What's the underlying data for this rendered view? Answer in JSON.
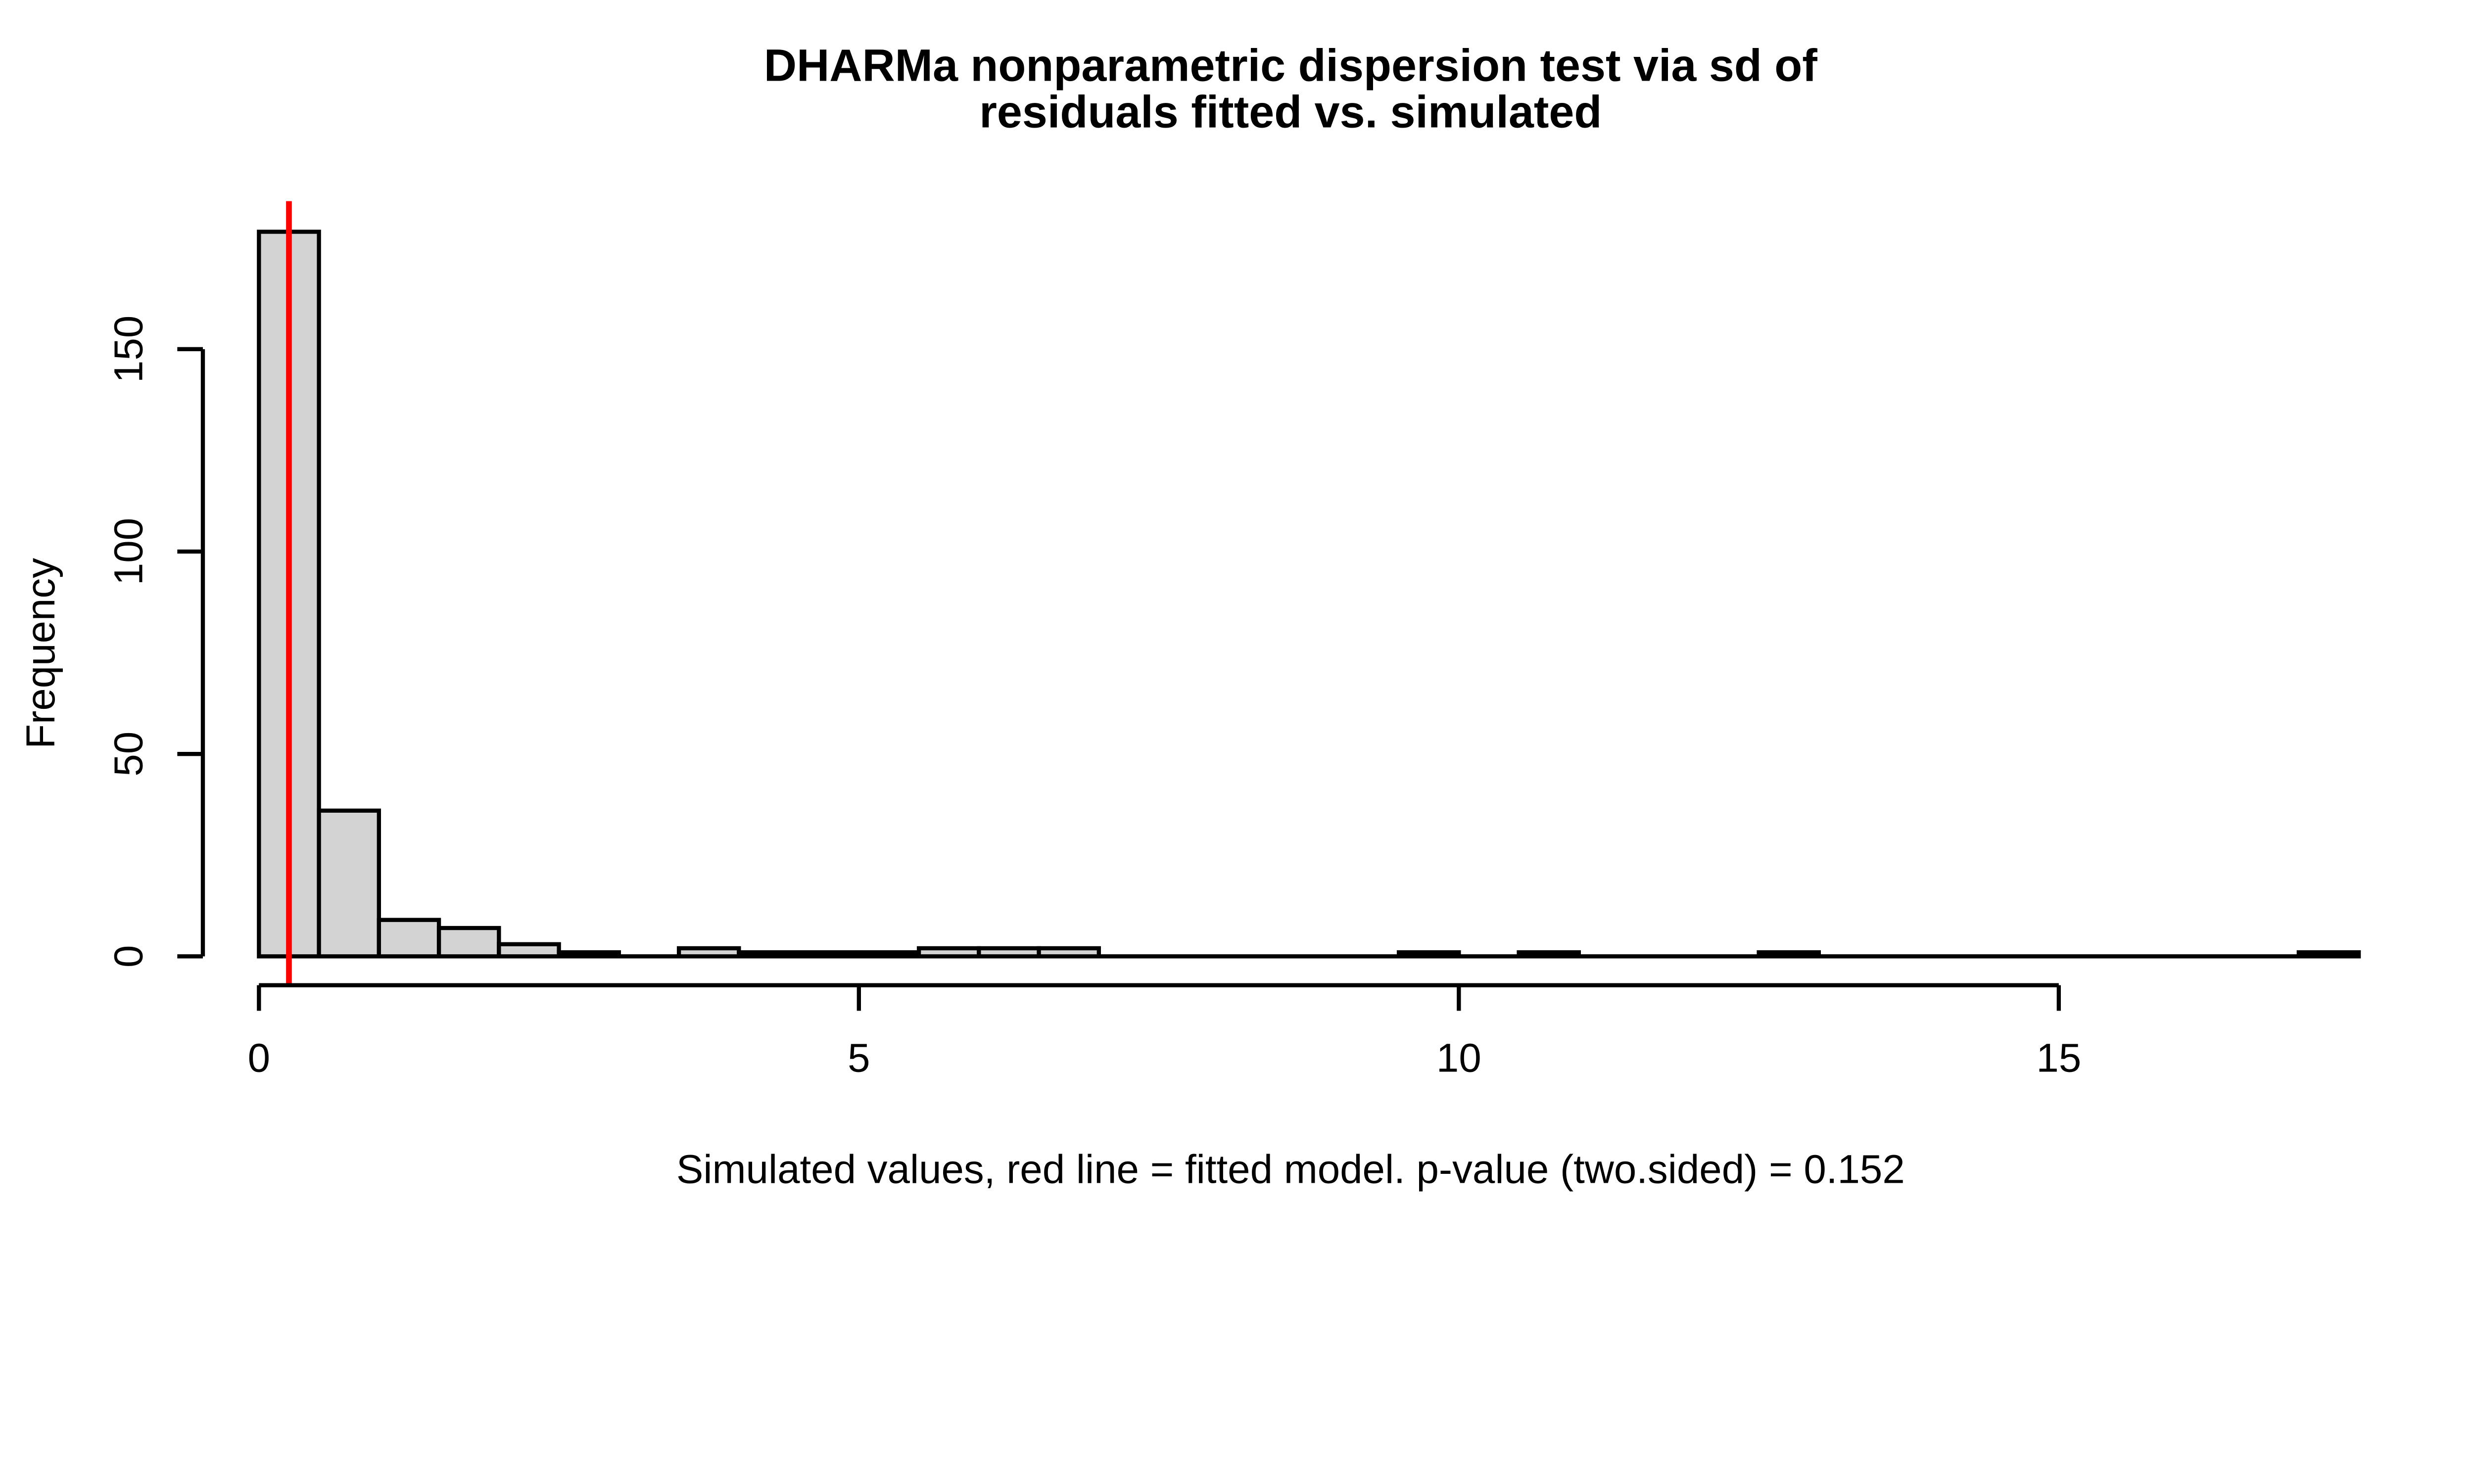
{
  "figure": {
    "background": "#FFFFFF"
  },
  "chart_data": {
    "type": "bar",
    "chart_kind": "histogram",
    "title": "DHARMa nonparametric dispersion test via sd of residuals fitted vs. simulated",
    "title_lines": [
      "DHARMa nonparametric dispersion test via sd of",
      "residuals fitted vs. simulated"
    ],
    "xlabel": "Simulated values, red line = fitted model. p-value (two.sided) = 0.152",
    "ylabel": "Frequency",
    "p_value": "0.152",
    "alternative": "two.sided",
    "bin_start": 0,
    "bin_width": 0.5,
    "counts": [
      179,
      36,
      9,
      7,
      3,
      1,
      0,
      2,
      1,
      1,
      1,
      2,
      2,
      2,
      0,
      0,
      0,
      0,
      0,
      1,
      0,
      1,
      0,
      0,
      0,
      1,
      0,
      0,
      0,
      0,
      0,
      0,
      0,
      0,
      1
    ],
    "x_ticks": [
      0,
      5,
      10,
      15
    ],
    "y_ticks": [
      0,
      50,
      100,
      150
    ],
    "xlim": [
      0,
      17.5
    ],
    "ylim": [
      0,
      186
    ],
    "grid": false,
    "legend": null,
    "red_line_x": 0.25,
    "colors": {
      "bar_fill": "#D3D3D3",
      "bar_stroke": "#000000",
      "red_line": "#FF0000",
      "axis": "#000000",
      "text": "#000000",
      "background": "#FFFFFF"
    }
  }
}
